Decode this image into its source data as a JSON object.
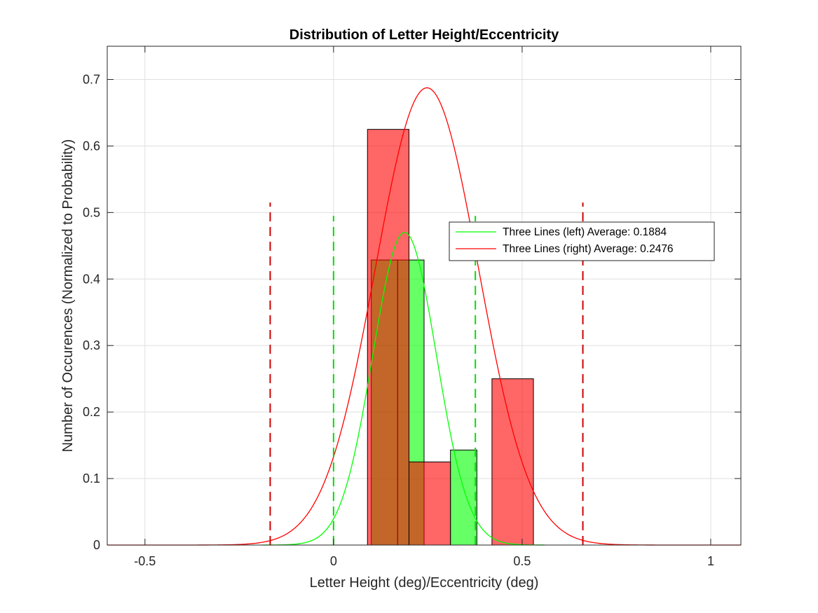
{
  "chart_data": {
    "type": "bar",
    "title": "Distribution of Letter Height/Eccentricity",
    "xlabel": "Letter Height (deg)/Eccentricity (deg)",
    "ylabel": "Number of Occurences (Normalized to Probability)",
    "xlim": [
      -0.6,
      1.08
    ],
    "ylim": [
      0,
      0.75
    ],
    "xticks": [
      -0.5,
      0,
      0.5,
      1
    ],
    "xtick_labels": [
      "-0.5",
      "0",
      "0.5",
      "1"
    ],
    "yticks": [
      0,
      0.1,
      0.2,
      0.3,
      0.4,
      0.5,
      0.6,
      0.7
    ],
    "ytick_labels": [
      "0",
      "0.1",
      "0.2",
      "0.3",
      "0.4",
      "0.5",
      "0.6",
      "0.7"
    ],
    "grid": true,
    "legend_position": "center-right",
    "series": [
      {
        "name": "Three Lines (left) Average: 0.1884",
        "color": "#00ff00",
        "face_alpha": 0.6,
        "histogram": [
          {
            "x0": 0.1,
            "x1": 0.17,
            "value": 0.4286
          },
          {
            "x0": 0.17,
            "x1": 0.24,
            "value": 0.4286
          },
          {
            "x0": 0.31,
            "x1": 0.38,
            "value": 0.1429
          }
        ],
        "mean": 0.1884,
        "std": 0.0846,
        "curve_peak": 0.47,
        "curve_range": [
          -0.19,
          0.56
        ],
        "bounds": [
          0.0,
          0.376
        ],
        "bound_line_top": 0.495
      },
      {
        "name": "Three Lines (right) Average: 0.2476",
        "color": "#ff0000",
        "face_alpha": 0.6,
        "histogram": [
          {
            "x0": 0.09,
            "x1": 0.2,
            "value": 0.625
          },
          {
            "x0": 0.2,
            "x1": 0.31,
            "value": 0.125
          },
          {
            "x0": 0.42,
            "x1": 0.53,
            "value": 0.25
          }
        ],
        "mean": 0.2476,
        "std": 0.1365,
        "curve_peak": 0.6875,
        "curve_range": [
          -0.6,
          1.08
        ],
        "bounds": [
          -0.168,
          0.661
        ],
        "bound_line_top": 0.515
      }
    ]
  }
}
